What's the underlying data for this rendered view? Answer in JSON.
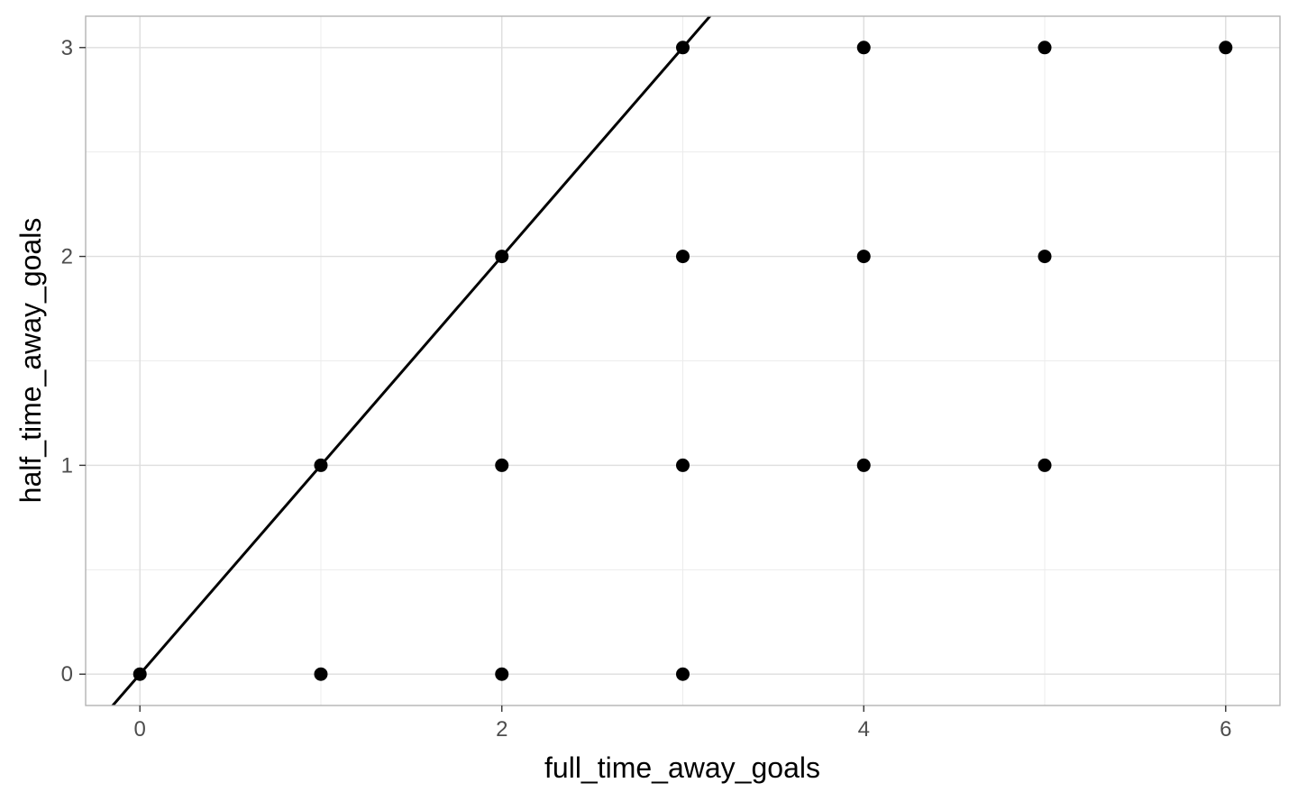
{
  "chart_data": {
    "type": "scatter",
    "title": "",
    "xlabel": "full_time_away_goals",
    "ylabel": "half_time_away_goals",
    "xlim": [
      -0.3,
      6.3
    ],
    "ylim": [
      -0.15,
      3.15
    ],
    "x_ticks": [
      0,
      2,
      4,
      6
    ],
    "y_ticks": [
      0,
      1,
      2,
      3
    ],
    "x_minor": [
      1,
      3,
      5
    ],
    "y_minor": [
      0.5,
      1.5,
      2.5
    ],
    "grid": true,
    "legend": "none",
    "point_color": "#000000",
    "points": [
      {
        "x": 0,
        "y": 0
      },
      {
        "x": 1,
        "y": 0
      },
      {
        "x": 2,
        "y": 0
      },
      {
        "x": 3,
        "y": 0
      },
      {
        "x": 1,
        "y": 1
      },
      {
        "x": 2,
        "y": 1
      },
      {
        "x": 3,
        "y": 1
      },
      {
        "x": 4,
        "y": 1
      },
      {
        "x": 5,
        "y": 1
      },
      {
        "x": 2,
        "y": 2
      },
      {
        "x": 3,
        "y": 2
      },
      {
        "x": 4,
        "y": 2
      },
      {
        "x": 5,
        "y": 2
      },
      {
        "x": 3,
        "y": 3
      },
      {
        "x": 4,
        "y": 3
      },
      {
        "x": 5,
        "y": 3
      },
      {
        "x": 6,
        "y": 3
      }
    ],
    "reference_line": {
      "slope": 1,
      "intercept": 0,
      "color": "#000000"
    }
  }
}
